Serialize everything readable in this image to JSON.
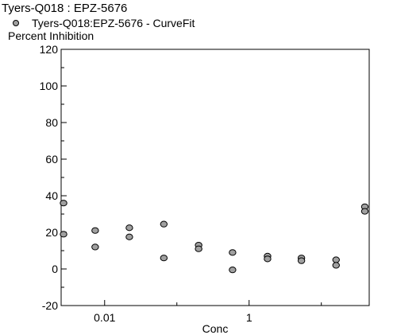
{
  "chart_data": {
    "type": "scatter",
    "title": "Tyers-Q018  :  EPZ-5676",
    "legend": {
      "label": "Tyers-Q018:EPZ-5676 - CurveFit",
      "placement": "top-left"
    },
    "ylabel": "Percent Inhibition",
    "xlabel": "Conc",
    "xscale": "log",
    "xlim": [
      0.0025,
      46
    ],
    "ylim": [
      -20,
      120
    ],
    "grid": false,
    "yticks": [
      -20,
      0,
      20,
      40,
      60,
      80,
      100,
      120
    ],
    "yminor": [
      -10,
      10,
      30,
      50,
      70,
      90,
      110
    ],
    "xticks": [
      {
        "value": 0.01,
        "label": "0.01"
      },
      {
        "value": 1,
        "label": "1"
      }
    ],
    "xminor": [
      0.1,
      10
    ],
    "series": [
      {
        "name": "Tyers-Q018:EPZ-5676 - CurveFit",
        "marker_color": "#a0a0a0",
        "edge_color": "#000000",
        "points": [
          [
            0.0027,
            36
          ],
          [
            0.0027,
            19
          ],
          [
            0.0074,
            21
          ],
          [
            0.0074,
            12
          ],
          [
            0.022,
            22.5
          ],
          [
            0.022,
            17.5
          ],
          [
            0.066,
            24.5
          ],
          [
            0.066,
            6
          ],
          [
            0.2,
            13
          ],
          [
            0.2,
            11
          ],
          [
            0.59,
            9
          ],
          [
            0.59,
            -0.5
          ],
          [
            1.8,
            7
          ],
          [
            1.8,
            5.5
          ],
          [
            5.3,
            6
          ],
          [
            5.3,
            4.5
          ],
          [
            16,
            5
          ],
          [
            16,
            2
          ],
          [
            40,
            34
          ],
          [
            40,
            31.5
          ]
        ]
      }
    ]
  }
}
